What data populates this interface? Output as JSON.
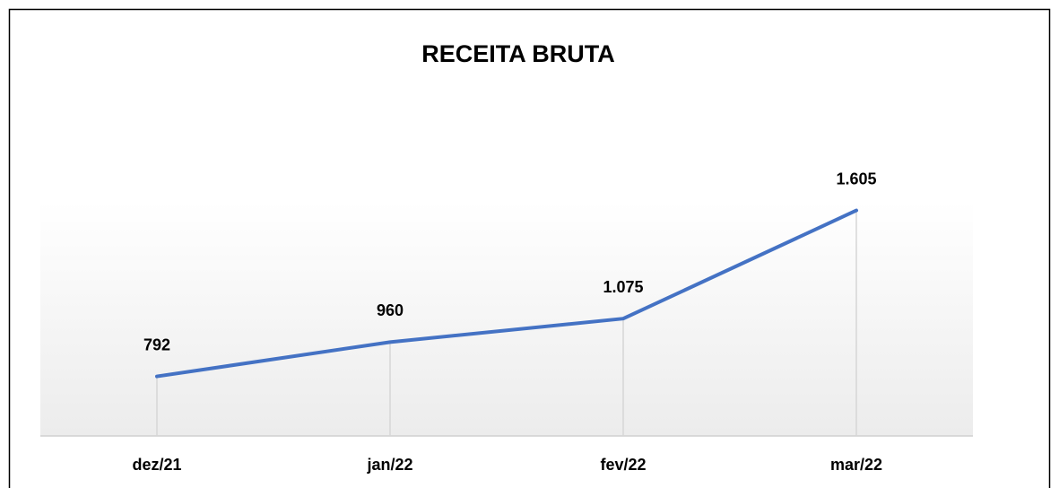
{
  "chart_data": {
    "type": "line",
    "title": "RECEITA BRUTA",
    "categories": [
      "dez/21",
      "jan/22",
      "fev/22",
      "mar/22"
    ],
    "values": [
      792,
      960,
      1075,
      1605
    ],
    "value_labels": [
      "792",
      "960",
      "1.075",
      "1.605"
    ],
    "color": "#4472c4",
    "ylim": [
      500,
      1700
    ]
  }
}
